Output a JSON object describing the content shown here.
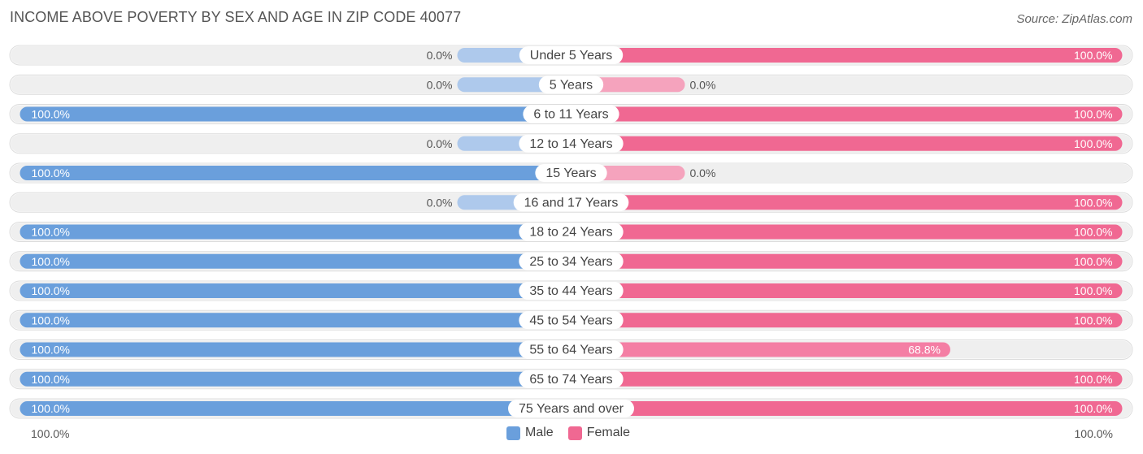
{
  "title": "INCOME ABOVE POVERTY BY SEX AND AGE IN ZIP CODE 40077",
  "source": "Source: ZipAtlas.com",
  "colors": {
    "male": "#6a9fdc",
    "male_light": "#aec9ec",
    "female": "#f06892",
    "female_light": "#f5a3bd",
    "row_bg": "#efefef"
  },
  "axis": {
    "left_label": "100.0%",
    "right_label": "100.0%"
  },
  "legend": [
    {
      "name": "Male",
      "color": "#6a9fdc"
    },
    {
      "name": "Female",
      "color": "#f06892"
    }
  ],
  "chart_data": {
    "type": "bar",
    "orientation": "horizontal-diverging",
    "title": "INCOME ABOVE POVERTY BY SEX AND AGE IN ZIP CODE 40077",
    "xlim": [
      -100,
      100
    ],
    "categories": [
      "Under 5 Years",
      "5 Years",
      "6 to 11 Years",
      "12 to 14 Years",
      "15 Years",
      "16 and 17 Years",
      "18 to 24 Years",
      "25 to 34 Years",
      "35 to 44 Years",
      "45 to 54 Years",
      "55 to 64 Years",
      "65 to 74 Years",
      "75 Years and over"
    ],
    "series": [
      {
        "name": "Male",
        "values": [
          0.0,
          0.0,
          100.0,
          0.0,
          100.0,
          0.0,
          100.0,
          100.0,
          100.0,
          100.0,
          100.0,
          100.0,
          100.0
        ],
        "labels": [
          "0.0%",
          "0.0%",
          "100.0%",
          "0.0%",
          "100.0%",
          "0.0%",
          "100.0%",
          "100.0%",
          "100.0%",
          "100.0%",
          "100.0%",
          "100.0%",
          "100.0%"
        ]
      },
      {
        "name": "Female",
        "values": [
          100.0,
          0.0,
          100.0,
          100.0,
          0.0,
          100.0,
          100.0,
          100.0,
          100.0,
          100.0,
          68.8,
          100.0,
          100.0
        ],
        "labels": [
          "100.0%",
          "0.0%",
          "100.0%",
          "100.0%",
          "0.0%",
          "100.0%",
          "100.0%",
          "100.0%",
          "100.0%",
          "100.0%",
          "68.8%",
          "100.0%",
          "100.0%"
        ]
      }
    ],
    "legend_position": "bottom-center"
  }
}
